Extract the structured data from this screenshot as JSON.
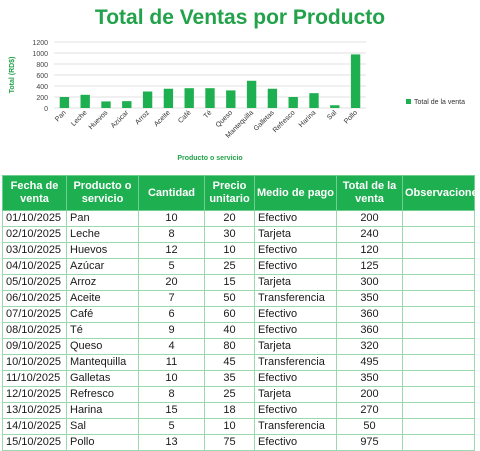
{
  "title": "Total de Ventas por Producto",
  "colors": {
    "accent": "#22a24a",
    "header_bg": "#1eb050",
    "bar": "#1eb050"
  },
  "chart_data": {
    "type": "bar",
    "title": "Total de Ventas por Producto",
    "xlabel": "Producto o servicio",
    "ylabel": "Total (RD$)",
    "ylim": [
      0,
      1200
    ],
    "yticks": [
      0,
      200,
      400,
      600,
      800,
      1000,
      1200
    ],
    "grid": true,
    "legend_position": "right",
    "categories": [
      "Pan",
      "Leche",
      "Huevos",
      "Azúcar",
      "Arroz",
      "Aceite",
      "Café",
      "Té",
      "Queso",
      "Mantequilla",
      "Galletas",
      "Refresco",
      "Harina",
      "Sal",
      "Pollo"
    ],
    "series": [
      {
        "name": "Total de la venta",
        "values": [
          200,
          240,
          120,
          125,
          300,
          350,
          360,
          360,
          320,
          495,
          350,
          200,
          270,
          50,
          975
        ]
      }
    ]
  },
  "table": {
    "headers": [
      "Fecha de venta",
      "Producto o servicio",
      "Cantidad",
      "Precio unitario",
      "Medio de pago",
      "Total de la venta",
      "Observaciones"
    ],
    "rows": [
      [
        "01/10/2025",
        "Pan",
        "10",
        "20",
        "Efectivo",
        "200",
        ""
      ],
      [
        "02/10/2025",
        "Leche",
        "8",
        "30",
        "Tarjeta",
        "240",
        ""
      ],
      [
        "03/10/2025",
        "Huevos",
        "12",
        "10",
        "Efectivo",
        "120",
        ""
      ],
      [
        "04/10/2025",
        "Azúcar",
        "5",
        "25",
        "Efectivo",
        "125",
        ""
      ],
      [
        "05/10/2025",
        "Arroz",
        "20",
        "15",
        "Tarjeta",
        "300",
        ""
      ],
      [
        "06/10/2025",
        "Aceite",
        "7",
        "50",
        "Transferencia",
        "350",
        ""
      ],
      [
        "07/10/2025",
        "Café",
        "6",
        "60",
        "Efectivo",
        "360",
        ""
      ],
      [
        "08/10/2025",
        "Té",
        "9",
        "40",
        "Efectivo",
        "360",
        ""
      ],
      [
        "09/10/2025",
        "Queso",
        "4",
        "80",
        "Tarjeta",
        "320",
        ""
      ],
      [
        "10/10/2025",
        "Mantequilla",
        "11",
        "45",
        "Transferencia",
        "495",
        ""
      ],
      [
        "11/10/2025",
        "Galletas",
        "10",
        "35",
        "Efectivo",
        "350",
        ""
      ],
      [
        "12/10/2025",
        "Refresco",
        "8",
        "25",
        "Tarjeta",
        "200",
        ""
      ],
      [
        "13/10/2025",
        "Harina",
        "15",
        "18",
        "Efectivo",
        "270",
        ""
      ],
      [
        "14/10/2025",
        "Sal",
        "5",
        "10",
        "Transferencia",
        "50",
        ""
      ],
      [
        "15/10/2025",
        "Pollo",
        "13",
        "75",
        "Efectivo",
        "975",
        ""
      ]
    ]
  }
}
